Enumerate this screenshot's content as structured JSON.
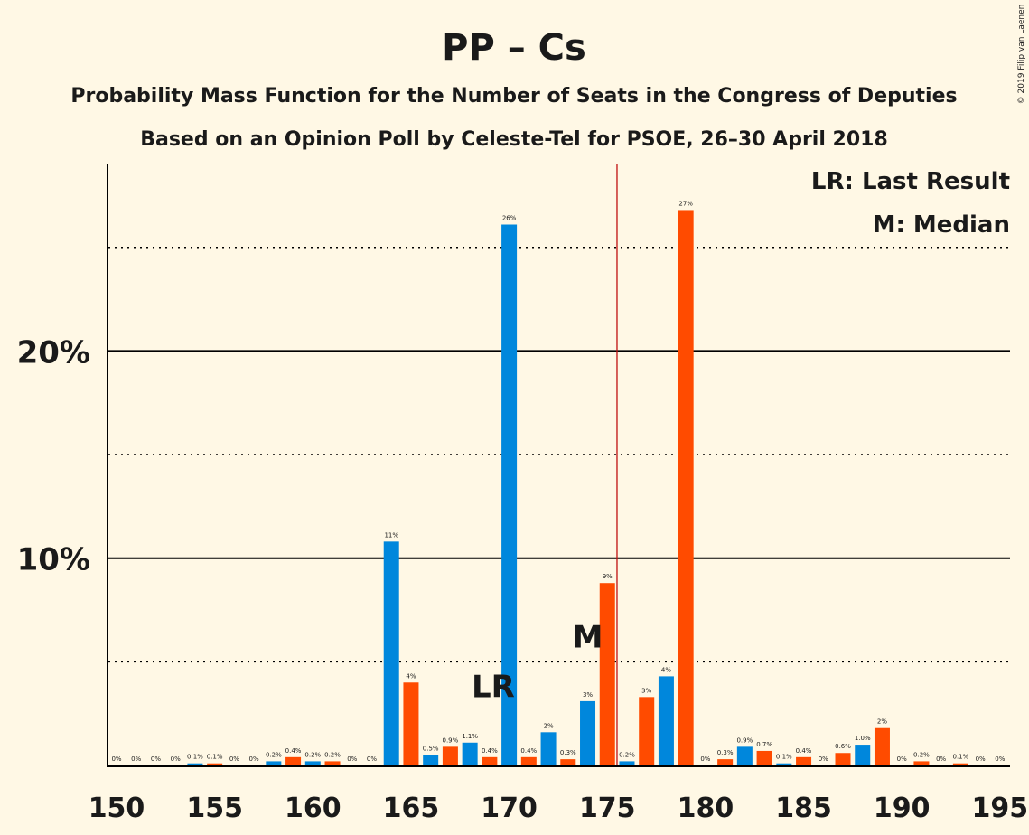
{
  "chart_data": {
    "type": "bar",
    "title": "PP – Cs",
    "subtitle1": "Probability Mass Function for the Number of Seats in the Congress of Deputies",
    "subtitle2": "Based on an Opinion Poll by Celeste-Tel for PSOE, 26–30 April 2018",
    "copyright": "© 2019 Filip van Laenen",
    "legend": {
      "lr": "LR: Last Result",
      "m": "M: Median"
    },
    "xlim": [
      150,
      195
    ],
    "ylim": [
      0,
      29
    ],
    "xticks": [
      150,
      155,
      160,
      165,
      170,
      175,
      180,
      185,
      190,
      195
    ],
    "yticks_major": [
      10,
      20
    ],
    "ytick_labels": [
      "10%",
      "20%"
    ],
    "yticks_dotted": [
      5,
      15,
      25
    ],
    "majority_line": 176,
    "last_result": {
      "x": 169,
      "label": "LR"
    },
    "median": {
      "x": 174,
      "label": "M"
    },
    "colors": {
      "blue": "#0087dc",
      "orange": "#ff4b00",
      "majority": "#c01010",
      "axis": "#000000"
    },
    "x": [
      150,
      151,
      152,
      153,
      154,
      155,
      156,
      157,
      158,
      159,
      160,
      161,
      162,
      163,
      164,
      165,
      166,
      167,
      168,
      169,
      170,
      171,
      172,
      173,
      174,
      175,
      176,
      177,
      178,
      179,
      180,
      181,
      182,
      183,
      184,
      185,
      186,
      187,
      188,
      189,
      190,
      191,
      192,
      193,
      194,
      195
    ],
    "values": [
      0,
      0,
      0,
      0,
      0.1,
      0.1,
      0,
      0,
      0.2,
      0.4,
      0.2,
      0.2,
      0,
      0,
      10.8,
      4.0,
      0.5,
      0.9,
      1.1,
      0.4,
      26.1,
      0.4,
      1.6,
      0.3,
      3.1,
      8.8,
      0.2,
      3.3,
      4.3,
      26.8,
      0,
      0.3,
      0.9,
      0.7,
      0.1,
      0.4,
      0,
      0.6,
      1.0,
      1.8,
      0,
      0.2,
      0,
      0.1,
      0,
      0
    ],
    "labels": [
      "0%",
      "0%",
      "0%",
      "0%",
      "0.1%",
      "0.1%",
      "0%",
      "0%",
      "0.2%",
      "0.4%",
      "0.2%",
      "0.2%",
      "0%",
      "0%",
      "11%",
      "4%",
      "0.5%",
      "0.9%",
      "1.1%",
      "0.4%",
      "26%",
      "0.4%",
      "2%",
      "0.3%",
      "3%",
      "9%",
      "0.2%",
      "3%",
      "4%",
      "27%",
      "0%",
      "0.3%",
      "0.9%",
      "0.7%",
      "0.1%",
      "0.4%",
      "0%",
      "0.6%",
      "1.0%",
      "2%",
      "0%",
      "0.2%",
      "0%",
      "0.1%",
      "0%",
      "0%"
    ]
  }
}
